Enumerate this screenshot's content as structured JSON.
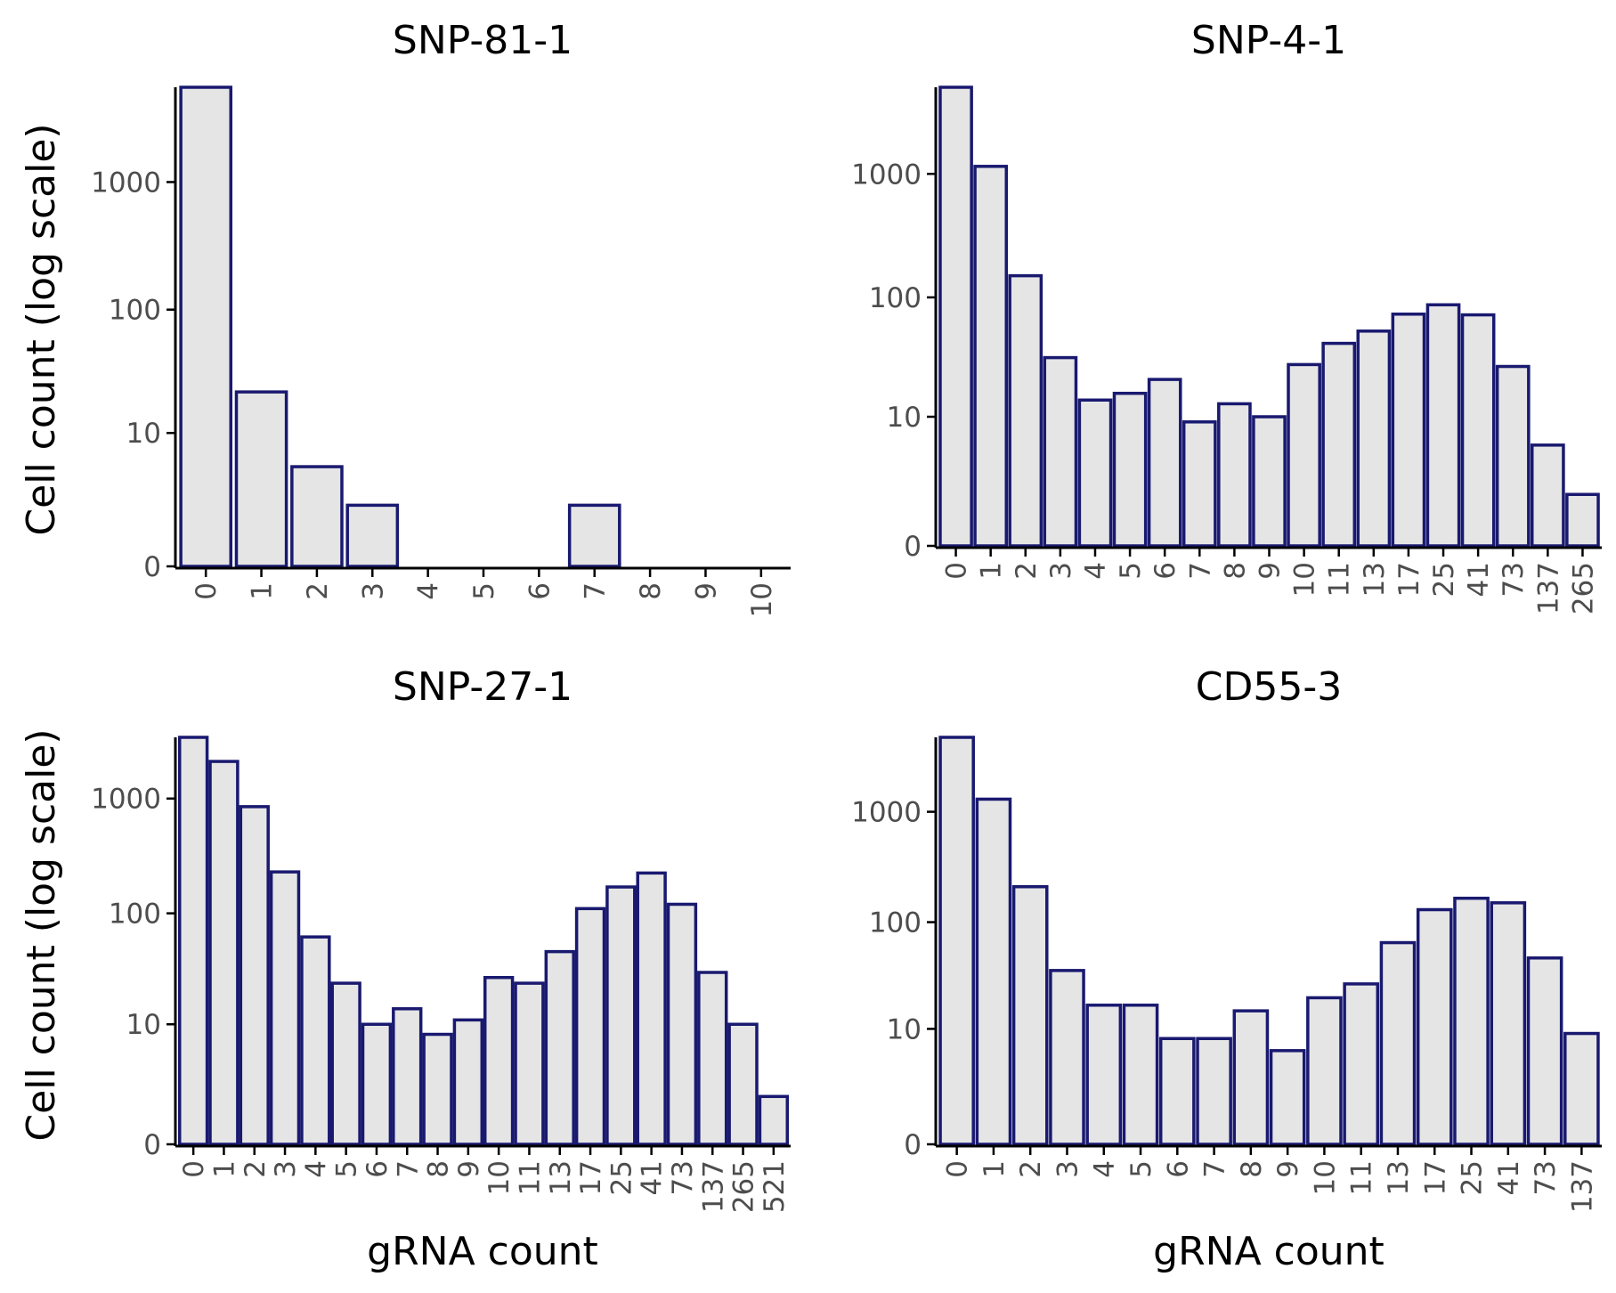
{
  "chart_data": [
    {
      "type": "bar",
      "title": "SNP-81-1",
      "ylabel": "Cell count (log scale)",
      "xlabel": "",
      "scale_y": "log10(count + 1)",
      "yticks": [
        0,
        10,
        100,
        1000
      ],
      "ymax": 5500,
      "bar_color": "#e5e5e5",
      "bar_edge_color": "#191970",
      "categories": [
        "0",
        "1",
        "2",
        "3",
        "4",
        "5",
        "6",
        "7",
        "8",
        "9",
        "10"
      ],
      "values": [
        5500,
        22,
        5,
        2,
        0,
        0,
        0,
        2,
        0,
        0,
        0
      ]
    },
    {
      "type": "bar",
      "title": "SNP-4-1",
      "ylabel": "",
      "xlabel": "",
      "scale_y": "log10(count + 1)",
      "yticks": [
        0,
        10,
        100,
        1000
      ],
      "ymax": 5000,
      "bar_color": "#e5e5e5",
      "bar_edge_color": "#191970",
      "categories": [
        "0",
        "1",
        "2",
        "3",
        "4",
        "5",
        "6",
        "7",
        "8",
        "9",
        "10",
        "11",
        "13",
        "17",
        "25",
        "41",
        "73",
        "137",
        "265"
      ],
      "values": [
        5000,
        1150,
        150,
        32,
        14,
        16,
        21,
        9,
        13,
        10,
        28,
        42,
        53,
        73,
        87,
        72,
        27,
        5.5,
        1.6
      ]
    },
    {
      "type": "bar",
      "title": "SNP-27-1",
      "ylabel": "Cell count (log scale)",
      "xlabel": "gRNA count",
      "scale_y": "log10(count + 1)",
      "yticks": [
        0,
        10,
        100,
        1000
      ],
      "ymax": 3400,
      "bar_color": "#e5e5e5",
      "bar_edge_color": "#191970",
      "categories": [
        "0",
        "1",
        "2",
        "3",
        "4",
        "5",
        "6",
        "7",
        "8",
        "9",
        "10",
        "11",
        "13",
        "17",
        "25",
        "41",
        "73",
        "137",
        "265",
        "521"
      ],
      "values": [
        3400,
        2100,
        850,
        230,
        62,
        24,
        10,
        14,
        8,
        11,
        27,
        24,
        46,
        110,
        170,
        225,
        120,
        30,
        10,
        1.6
      ]
    },
    {
      "type": "bar",
      "title": "CD55-3",
      "ylabel": "",
      "xlabel": "gRNA count",
      "scale_y": "log10(count + 1)",
      "yticks": [
        0,
        10,
        100,
        1000
      ],
      "ymax": 4700,
      "bar_color": "#e5e5e5",
      "bar_edge_color": "#191970",
      "categories": [
        "0",
        "1",
        "2",
        "3",
        "4",
        "5",
        "6",
        "7",
        "8",
        "9",
        "10",
        "11",
        "13",
        "17",
        "25",
        "41",
        "73",
        "137"
      ],
      "values": [
        4700,
        1300,
        210,
        36,
        17,
        17,
        8,
        8,
        15,
        6,
        20,
        27,
        65,
        130,
        165,
        150,
        47,
        9
      ]
    }
  ]
}
